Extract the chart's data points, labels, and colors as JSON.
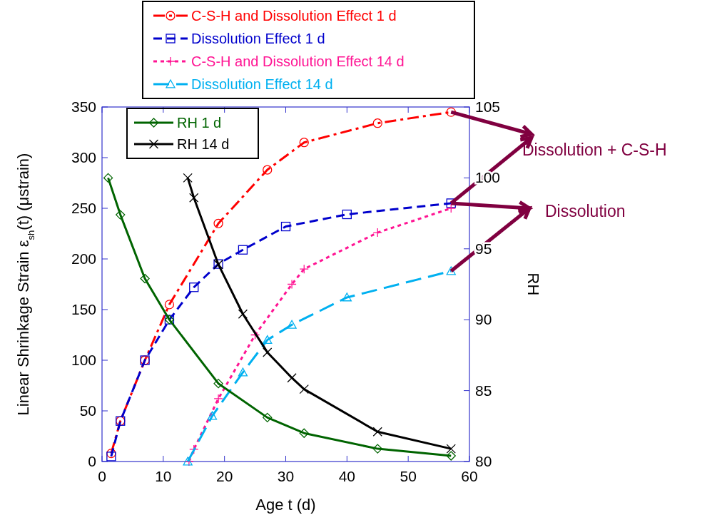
{
  "chart_data": {
    "type": "line",
    "xlabel": "Age t (d)",
    "ylabel": "Linear Shrinkage Strain ε$_{sh}$(t) (μstrain)",
    "y2label": "RH",
    "xlim": [
      0,
      60
    ],
    "xticks": [
      0,
      10,
      20,
      30,
      40,
      50,
      60
    ],
    "ylim": [
      0,
      350
    ],
    "yticks": [
      0,
      50,
      100,
      150,
      200,
      250,
      300,
      350
    ],
    "y2lim": [
      80,
      105
    ],
    "y2ticks": [
      80,
      85,
      90,
      95,
      100,
      105
    ],
    "grid": false,
    "legend": "top",
    "annotations": [
      {
        "text": "Dissolution + C-S-H",
        "x": 57,
        "y": 345
      },
      {
        "text": "Dissolution",
        "x": 57,
        "y": 188
      }
    ],
    "series": [
      {
        "name": "C-S-H and Dissolution Effect 1 d",
        "color": "#ff0000",
        "marker": "circle",
        "line_style": "dashdot",
        "x": [
          1.5,
          3,
          7,
          11,
          19,
          27,
          33,
          45,
          57
        ],
        "values": [
          8,
          40,
          100,
          155,
          235,
          288,
          315,
          334,
          345
        ]
      },
      {
        "name": "Dissolution Effect 1 d",
        "color": "#0000cc",
        "marker": "square",
        "line_style": "dashed",
        "x": [
          1.5,
          3,
          7,
          11,
          15,
          19,
          23,
          30,
          40,
          57
        ],
        "values": [
          5,
          40,
          100,
          140,
          172,
          195,
          209,
          232,
          244,
          255
        ]
      },
      {
        "name": "C-S-H and Dissolution Effect 14 d",
        "color": "#ff1493",
        "marker": "cross",
        "line_style": "dotted",
        "x": [
          14.2,
          15,
          19,
          25,
          31,
          33,
          45,
          57
        ],
        "values": [
          0,
          12,
          62,
          125,
          175,
          190,
          226,
          250
        ]
      },
      {
        "name": "Dissolution Effect 14 d",
        "color": "#00b0f0",
        "marker": "triangle",
        "line_style": "longdash",
        "x": [
          14,
          18,
          23,
          27,
          31,
          40,
          57
        ],
        "values": [
          0,
          45,
          88,
          120,
          135,
          162,
          188
        ]
      },
      {
        "name": "RH 1 d",
        "color": "#006400",
        "marker": "diamond",
        "line_style": "solid",
        "axis": "y2",
        "x": [
          1,
          3,
          7,
          11,
          19,
          27,
          33,
          45,
          57
        ],
        "values": [
          100,
          97.4,
          92.9,
          90,
          85.5,
          83.1,
          82,
          80.9,
          80.4
        ]
      },
      {
        "name": "RH 14 d",
        "color": "#000000",
        "marker": "x",
        "line_style": "solid",
        "axis": "y2",
        "x": [
          14,
          15,
          19,
          23,
          27,
          31,
          33,
          45,
          57
        ],
        "values": [
          100,
          98.6,
          93.9,
          90.4,
          87.7,
          85.9,
          85.1,
          82.1,
          80.9
        ]
      }
    ]
  }
}
